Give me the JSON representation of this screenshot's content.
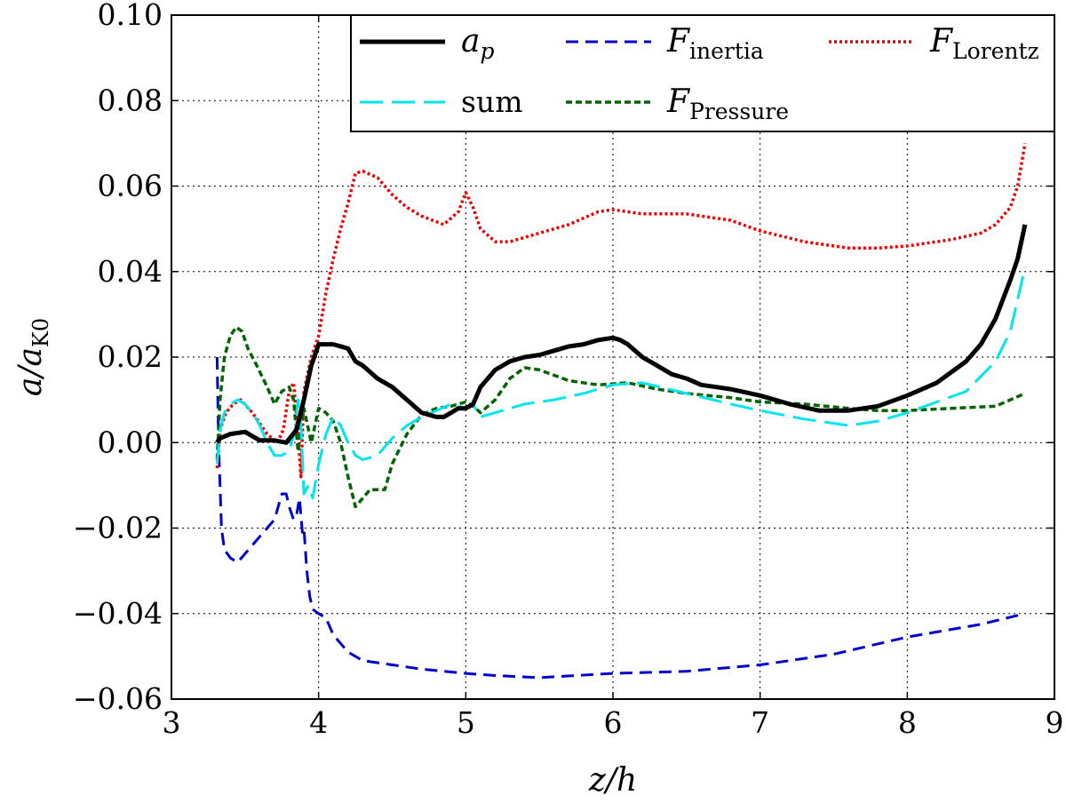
{
  "chart_data": {
    "type": "line",
    "title": "",
    "xlabel": "z/h",
    "ylabel": "a/a_K0",
    "xlim": [
      3,
      9
    ],
    "ylim": [
      -0.06,
      0.1
    ],
    "xticks": [
      3,
      4,
      5,
      6,
      7,
      8,
      9
    ],
    "yticks": [
      -0.06,
      -0.04,
      -0.02,
      0.0,
      0.02,
      0.04,
      0.06,
      0.08,
      0.1
    ],
    "xtick_labels": [
      "3",
      "4",
      "5",
      "6",
      "7",
      "8",
      "9"
    ],
    "ytick_labels": [
      "−0.06",
      "−0.04",
      "−0.02",
      "0.00",
      "0.02",
      "0.04",
      "0.06",
      "0.08",
      "0.10"
    ],
    "grid": true,
    "legend_position": "top-right",
    "series": [
      {
        "name": "a_p",
        "label_main": "a",
        "label_sub": "p",
        "color": "#000000",
        "style": "solid",
        "x": [
          3.31,
          3.33,
          3.4,
          3.5,
          3.6,
          3.7,
          3.78,
          3.85,
          3.9,
          3.95,
          4.0,
          4.05,
          4.1,
          4.2,
          4.25,
          4.3,
          4.4,
          4.5,
          4.6,
          4.7,
          4.8,
          4.85,
          4.9,
          4.95,
          5.0,
          5.05,
          5.1,
          5.2,
          5.3,
          5.4,
          5.5,
          5.6,
          5.7,
          5.8,
          5.9,
          6.0,
          6.05,
          6.1,
          6.2,
          6.3,
          6.4,
          6.5,
          6.6,
          6.7,
          6.8,
          7.0,
          7.2,
          7.4,
          7.6,
          7.8,
          8.0,
          8.2,
          8.4,
          8.5,
          8.6,
          8.7,
          8.75,
          8.8
        ],
        "values": [
          0.0,
          0.001,
          0.002,
          0.0025,
          0.0005,
          0.0005,
          0.0,
          0.003,
          0.01,
          0.018,
          0.023,
          0.023,
          0.023,
          0.022,
          0.019,
          0.018,
          0.015,
          0.013,
          0.01,
          0.007,
          0.006,
          0.006,
          0.007,
          0.008,
          0.008,
          0.009,
          0.013,
          0.017,
          0.019,
          0.02,
          0.0205,
          0.0215,
          0.0225,
          0.023,
          0.024,
          0.0245,
          0.024,
          0.023,
          0.02,
          0.018,
          0.016,
          0.015,
          0.0135,
          0.013,
          0.0125,
          0.011,
          0.009,
          0.0075,
          0.0075,
          0.0085,
          0.011,
          0.014,
          0.019,
          0.023,
          0.029,
          0.038,
          0.043,
          0.051
        ]
      },
      {
        "name": "F_inertia",
        "label_main": "F",
        "label_sub": "inertia",
        "color": "#0000cc",
        "style": "dashed",
        "x": [
          3.31,
          3.32,
          3.33,
          3.34,
          3.36,
          3.4,
          3.45,
          3.5,
          3.6,
          3.65,
          3.7,
          3.75,
          3.78,
          3.8,
          3.83,
          3.85,
          3.87,
          3.89,
          3.9,
          3.92,
          3.94,
          3.96,
          4.0,
          4.05,
          4.1,
          4.2,
          4.3,
          4.5,
          4.7,
          5.0,
          5.2,
          5.5,
          6.0,
          6.5,
          7.0,
          7.5,
          8.0,
          8.5,
          8.8
        ],
        "values": [
          0.02,
          0.0,
          -0.01,
          -0.02,
          -0.025,
          -0.027,
          -0.028,
          -0.026,
          -0.022,
          -0.02,
          -0.018,
          -0.012,
          -0.012,
          -0.015,
          -0.018,
          -0.017,
          -0.013,
          -0.021,
          -0.02,
          -0.03,
          -0.036,
          -0.039,
          -0.04,
          -0.041,
          -0.045,
          -0.049,
          -0.051,
          -0.052,
          -0.053,
          -0.054,
          -0.0545,
          -0.055,
          -0.054,
          -0.0535,
          -0.052,
          -0.0495,
          -0.0455,
          -0.0425,
          -0.04
        ]
      },
      {
        "name": "F_Lorentz",
        "label_main": "F",
        "label_sub": "Lorentz",
        "color": "#ee0000",
        "style": "dotted",
        "x": [
          3.31,
          3.33,
          3.37,
          3.42,
          3.47,
          3.55,
          3.65,
          3.72,
          3.76,
          3.8,
          3.83,
          3.86,
          3.88,
          3.9,
          3.95,
          4.0,
          4.05,
          4.1,
          4.15,
          4.2,
          4.25,
          4.3,
          4.4,
          4.5,
          4.6,
          4.7,
          4.85,
          4.95,
          5.0,
          5.05,
          5.1,
          5.2,
          5.3,
          5.5,
          5.7,
          5.9,
          6.0,
          6.2,
          6.5,
          6.8,
          7.0,
          7.3,
          7.6,
          7.8,
          8.0,
          8.3,
          8.5,
          8.6,
          8.7,
          8.75,
          8.8
        ],
        "values": [
          -0.006,
          0.003,
          0.007,
          0.009,
          0.01,
          0.007,
          0.002,
          0.0,
          0.003,
          0.012,
          0.014,
          0.002,
          -0.008,
          0.012,
          0.02,
          0.025,
          0.035,
          0.043,
          0.05,
          0.056,
          0.063,
          0.0635,
          0.062,
          0.058,
          0.055,
          0.053,
          0.051,
          0.054,
          0.0585,
          0.055,
          0.05,
          0.047,
          0.047,
          0.049,
          0.051,
          0.054,
          0.0545,
          0.0535,
          0.0535,
          0.052,
          0.0495,
          0.047,
          0.0455,
          0.0455,
          0.046,
          0.0475,
          0.049,
          0.051,
          0.055,
          0.06,
          0.07
        ]
      },
      {
        "name": "sum",
        "label_main": "sum",
        "label_sub": "",
        "color": "#00e5ee",
        "style": "longdash",
        "x": [
          3.31,
          3.33,
          3.36,
          3.4,
          3.45,
          3.5,
          3.55,
          3.6,
          3.65,
          3.7,
          3.75,
          3.8,
          3.84,
          3.86,
          3.88,
          3.9,
          3.93,
          3.96,
          4.0,
          4.05,
          4.1,
          4.15,
          4.2,
          4.25,
          4.3,
          4.4,
          4.5,
          4.6,
          4.7,
          4.8,
          4.9,
          5.0,
          5.05,
          5.1,
          5.2,
          5.4,
          5.6,
          5.8,
          6.0,
          6.2,
          6.5,
          6.8,
          7.0,
          7.3,
          7.6,
          7.8,
          8.0,
          8.2,
          8.4,
          8.6,
          8.7,
          8.8
        ],
        "values": [
          -0.005,
          0.003,
          0.007,
          0.009,
          0.01,
          0.009,
          0.007,
          0.004,
          0.0,
          -0.003,
          -0.003,
          -0.002,
          0.003,
          0.01,
          0.004,
          -0.012,
          -0.01,
          -0.013,
          -0.005,
          0.002,
          0.006,
          0.004,
          0.0,
          -0.003,
          -0.004,
          -0.003,
          0.001,
          0.004,
          0.006,
          0.0075,
          0.009,
          0.008,
          0.009,
          0.006,
          0.007,
          0.009,
          0.01,
          0.0115,
          0.0135,
          0.014,
          0.0115,
          0.009,
          0.0075,
          0.0055,
          0.004,
          0.005,
          0.007,
          0.0095,
          0.012,
          0.019,
          0.026,
          0.041
        ]
      },
      {
        "name": "F_Pressure",
        "label_main": "F",
        "label_sub": "Pressure",
        "color": "#006400",
        "style": "shortdash",
        "x": [
          3.31,
          3.33,
          3.36,
          3.4,
          3.44,
          3.48,
          3.52,
          3.58,
          3.65,
          3.7,
          3.75,
          3.8,
          3.83,
          3.86,
          3.88,
          3.9,
          3.95,
          4.0,
          4.05,
          4.1,
          4.15,
          4.2,
          4.25,
          4.3,
          4.35,
          4.45,
          4.5,
          4.6,
          4.7,
          4.8,
          4.9,
          5.0,
          5.05,
          5.1,
          5.2,
          5.3,
          5.4,
          5.5,
          5.7,
          5.9,
          6.1,
          6.3,
          6.5,
          6.8,
          7.0,
          7.3,
          7.6,
          7.8,
          8.0,
          8.3,
          8.6,
          8.8
        ],
        "values": [
          -0.004,
          0.01,
          0.02,
          0.025,
          0.027,
          0.026,
          0.022,
          0.018,
          0.013,
          0.009,
          0.012,
          0.013,
          0.01,
          -0.002,
          0.004,
          0.008,
          0.0,
          0.008,
          0.007,
          0.005,
          0.0,
          -0.008,
          -0.015,
          -0.013,
          -0.011,
          -0.011,
          -0.005,
          0.002,
          0.0065,
          0.008,
          0.0085,
          0.0095,
          0.0085,
          0.007,
          0.01,
          0.015,
          0.0175,
          0.017,
          0.0145,
          0.0135,
          0.014,
          0.0125,
          0.0115,
          0.0105,
          0.0095,
          0.009,
          0.008,
          0.0075,
          0.0075,
          0.008,
          0.0085,
          0.0115
        ]
      }
    ]
  }
}
